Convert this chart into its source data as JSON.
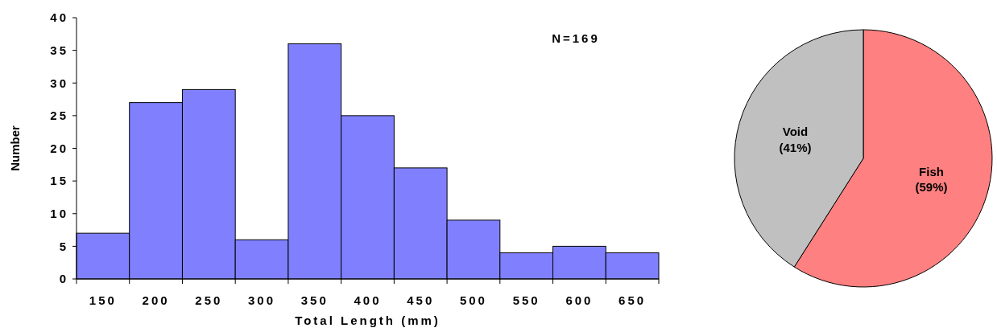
{
  "chart_data": [
    {
      "type": "bar",
      "xlabel": "Total Length (mm)",
      "ylabel": "Number",
      "categories": [
        "150",
        "200",
        "250",
        "300",
        "350",
        "400",
        "450",
        "500",
        "550",
        "600",
        "650"
      ],
      "values": [
        7,
        27,
        29,
        6,
        36,
        25,
        17,
        9,
        4,
        5,
        4
      ],
      "color": "#8080ff",
      "ylim": [
        0,
        40
      ],
      "yticks": [
        0,
        5,
        10,
        15,
        20,
        25,
        30,
        35,
        40
      ],
      "annotations": [
        "N=169"
      ]
    },
    {
      "type": "pie",
      "categories": [
        "Fish",
        "Void"
      ],
      "values": [
        59,
        41
      ],
      "colors": [
        "#ff8080",
        "#c0c0c0"
      ],
      "value_labels": [
        "(59%)",
        "(41%)"
      ]
    }
  ]
}
